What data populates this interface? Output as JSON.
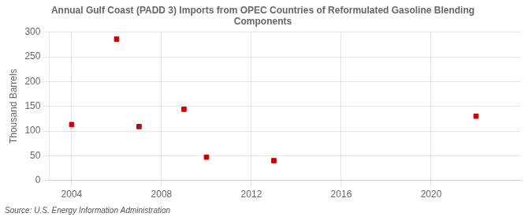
{
  "chart_data": {
    "type": "scatter",
    "title": "Annual Gulf Coast (PADD 3) Imports from OPEC Countries of Reformulated Gasoline Blending\nComponents",
    "ylabel": "Thousand Barrels",
    "annotations": [
      "Source: U.S. Energy Information Administration"
    ],
    "x": [
      2004,
      2006,
      2007,
      2009,
      2010,
      2013,
      2022
    ],
    "values": [
      113,
      286,
      109,
      144,
      47,
      40,
      130
    ],
    "color": "#cc0000",
    "marker": "square",
    "xlim": [
      2003,
      2024
    ],
    "xticks": [
      2004,
      2008,
      2012,
      2016,
      2020
    ],
    "ylim": [
      0,
      300
    ],
    "yticks": [
      0,
      50,
      100,
      150,
      200,
      250,
      300
    ],
    "grid": true
  }
}
